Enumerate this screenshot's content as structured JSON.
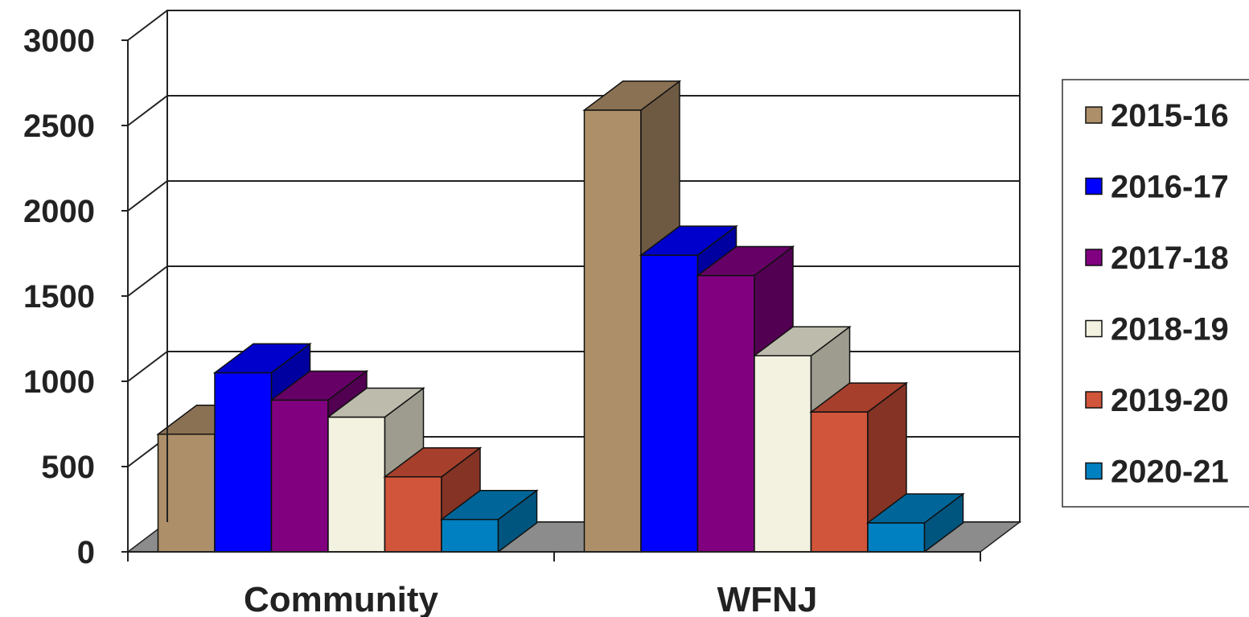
{
  "chart_data": {
    "type": "bar",
    "categories": [
      "Community",
      "WFNJ"
    ],
    "series": [
      {
        "name": "2015-16",
        "values": [
          690,
          2590
        ],
        "color": "#AD8F69",
        "side_color": "#6E5A42",
        "top_color": "#8A7153"
      },
      {
        "name": "2016-17",
        "values": [
          1050,
          1740
        ],
        "color": "#0000FF",
        "side_color": "#0000A0",
        "top_color": "#0000CC"
      },
      {
        "name": "2017-18",
        "values": [
          890,
          1620
        ],
        "color": "#800080",
        "side_color": "#520052",
        "top_color": "#660066"
      },
      {
        "name": "2018-19",
        "values": [
          790,
          1150
        ],
        "color": "#F3F2E0",
        "side_color": "#9D9C8F",
        "top_color": "#BDBCAC"
      },
      {
        "name": "2019-20",
        "values": [
          440,
          820
        ],
        "color": "#D0553A",
        "side_color": "#843325",
        "top_color": "#A6402D"
      },
      {
        "name": "2020-21",
        "values": [
          190,
          170
        ],
        "color": "#0080C0",
        "side_color": "#00557F",
        "top_color": "#006699"
      }
    ],
    "yticks": [
      "0",
      "500",
      "1000",
      "1500",
      "2000",
      "2500",
      "3000"
    ],
    "ylim": [
      0,
      3000
    ],
    "grid": true,
    "legend": "right",
    "three_d": true
  }
}
